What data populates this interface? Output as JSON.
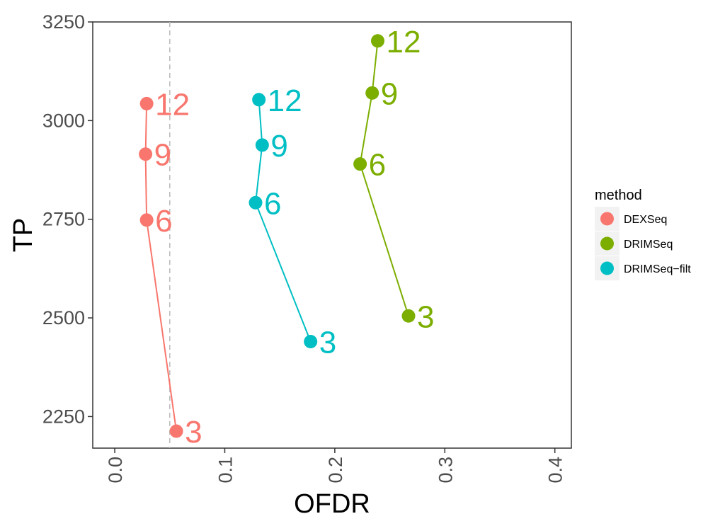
{
  "chart_data": {
    "type": "line",
    "xlabel": "OFDR",
    "ylabel": "TP",
    "xlim": [
      -0.02,
      0.415
    ],
    "ylim": [
      2170,
      3250
    ],
    "x_ticks": [
      {
        "value": 0.0,
        "label": "0.0"
      },
      {
        "value": 0.1,
        "label": "0.1"
      },
      {
        "value": 0.2,
        "label": "0.2"
      },
      {
        "value": 0.3,
        "label": "0.3"
      },
      {
        "value": 0.4,
        "label": "0.4"
      }
    ],
    "y_ticks": [
      {
        "value": 2250,
        "label": "2250"
      },
      {
        "value": 2500,
        "label": "2500"
      },
      {
        "value": 2750,
        "label": "2750"
      },
      {
        "value": 3000,
        "label": "3000"
      },
      {
        "value": 3250,
        "label": "3250"
      }
    ],
    "reference_line": {
      "x": 0.05,
      "style": "dashed",
      "color": "#bdbdbd"
    },
    "grid": false,
    "legend": {
      "title": "method",
      "position": "right"
    },
    "series": [
      {
        "name": "DEXSeq",
        "color": "#F8766D",
        "points": [
          {
            "x": 0.056,
            "y": 2213,
            "label": "3"
          },
          {
            "x": 0.029,
            "y": 2748,
            "label": "6"
          },
          {
            "x": 0.028,
            "y": 2915,
            "label": "9"
          },
          {
            "x": 0.029,
            "y": 3043,
            "label": "12"
          }
        ]
      },
      {
        "name": "DRIMSeq",
        "color": "#7CAE00",
        "points": [
          {
            "x": 0.267,
            "y": 2505,
            "label": "3"
          },
          {
            "x": 0.223,
            "y": 2890,
            "label": "6"
          },
          {
            "x": 0.234,
            "y": 3070,
            "label": "9"
          },
          {
            "x": 0.239,
            "y": 3202,
            "label": "12"
          }
        ]
      },
      {
        "name": "DRIMSeq−filt",
        "color": "#00BFC4",
        "points": [
          {
            "x": 0.178,
            "y": 2440,
            "label": "3"
          },
          {
            "x": 0.128,
            "y": 2792,
            "label": "6"
          },
          {
            "x": 0.134,
            "y": 2938,
            "label": "9"
          },
          {
            "x": 0.131,
            "y": 3053,
            "label": "12"
          }
        ]
      }
    ]
  }
}
